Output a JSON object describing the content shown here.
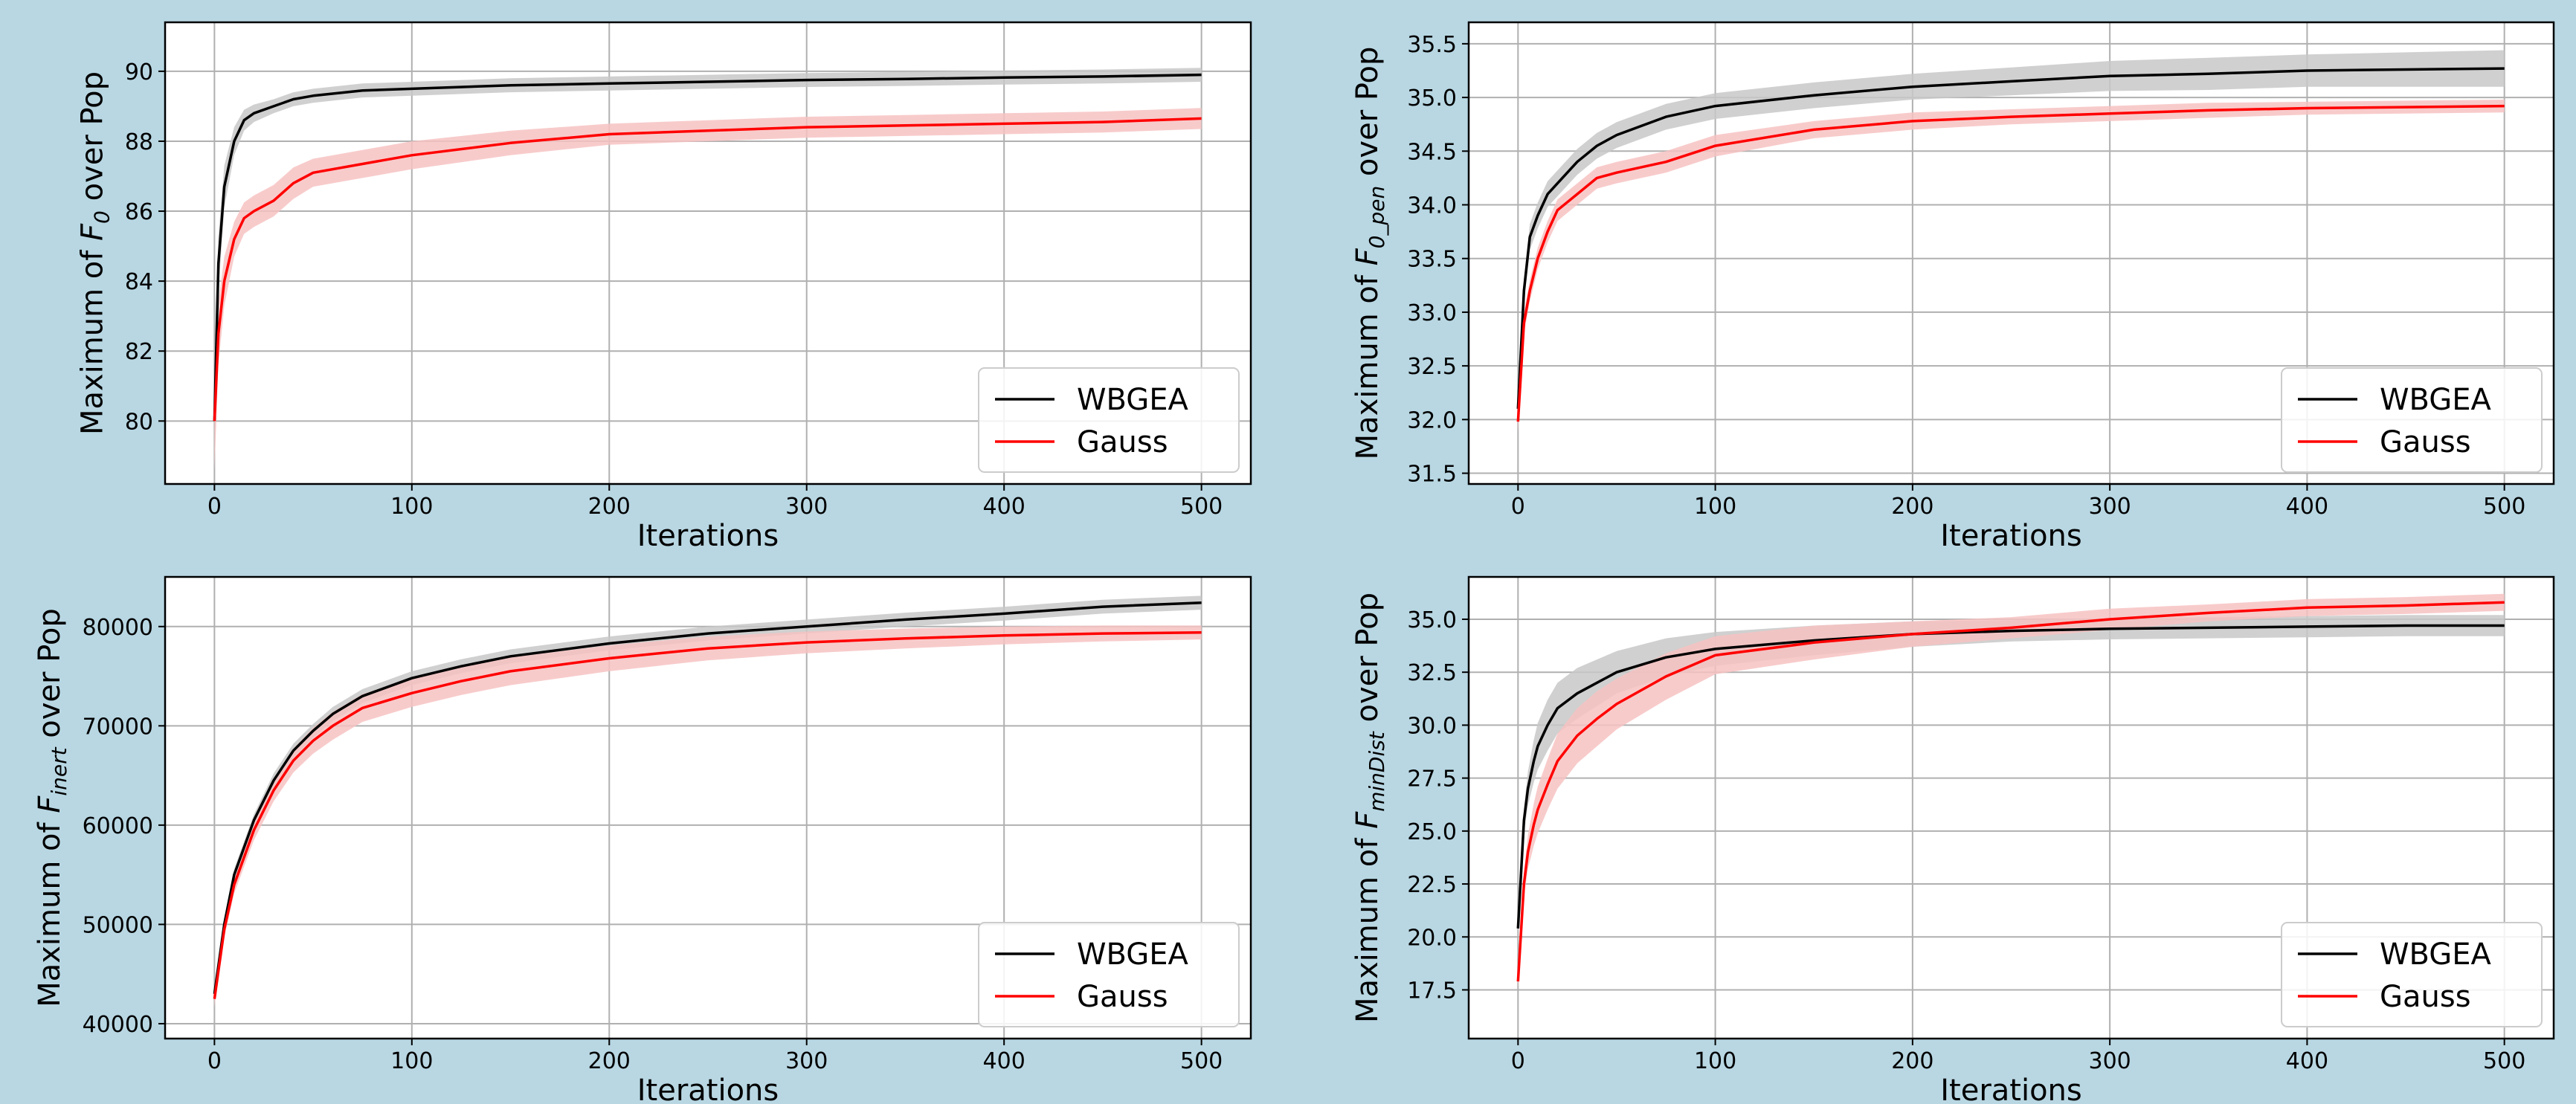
{
  "figure": {
    "background": "#b8d7e3"
  },
  "colors": {
    "WBGEA": "#000000",
    "Gauss": "#ff0000",
    "WBGEA_band": "#c8c8c8",
    "Gauss_band": "#f7c2c2"
  },
  "chart_data": [
    {
      "id": "f0",
      "type": "line",
      "ylabel": {
        "pre": "Maximum of ",
        "sym": "F",
        "sub": "0",
        "post": " over Pop"
      },
      "xlabel": "Iterations",
      "xlim": [
        -25,
        525
      ],
      "ylim": [
        78.2,
        91.4
      ],
      "xticks": [
        0,
        100,
        200,
        300,
        400,
        500
      ],
      "xtick_labels": [
        "0",
        "100",
        "200",
        "300",
        "400",
        "500"
      ],
      "yticks": [
        80,
        82,
        84,
        86,
        88,
        90
      ],
      "ytick_labels": [
        "80",
        "82",
        "84",
        "86",
        "88",
        "90"
      ],
      "grid": true,
      "legend": {
        "position": "lower-right",
        "entries": [
          "WBGEA",
          "Gauss"
        ]
      },
      "series": [
        {
          "name": "WBGEA",
          "x": [
            0,
            2,
            5,
            10,
            15,
            20,
            30,
            40,
            50,
            75,
            100,
            150,
            200,
            250,
            300,
            350,
            400,
            450,
            500
          ],
          "values": [
            80.0,
            84.5,
            86.7,
            88.0,
            88.6,
            88.8,
            89.0,
            89.2,
            89.3,
            89.45,
            89.5,
            89.6,
            89.65,
            89.7,
            89.75,
            89.78,
            89.82,
            89.85,
            89.9
          ],
          "spread": [
            1.4,
            0.8,
            0.6,
            0.4,
            0.3,
            0.25,
            0.2,
            0.2,
            0.2,
            0.2,
            0.2,
            0.2,
            0.2,
            0.2,
            0.2,
            0.2,
            0.2,
            0.2,
            0.2
          ]
        },
        {
          "name": "Gauss",
          "x": [
            0,
            2,
            5,
            10,
            15,
            20,
            30,
            40,
            50,
            75,
            100,
            150,
            200,
            250,
            300,
            350,
            400,
            450,
            500
          ],
          "values": [
            80.0,
            82.5,
            84.0,
            85.2,
            85.8,
            86.0,
            86.3,
            86.8,
            87.1,
            87.35,
            87.6,
            87.95,
            88.2,
            88.3,
            88.4,
            88.45,
            88.5,
            88.55,
            88.65
          ],
          "spread": [
            1.4,
            0.9,
            0.7,
            0.5,
            0.45,
            0.45,
            0.45,
            0.45,
            0.4,
            0.4,
            0.4,
            0.35,
            0.3,
            0.3,
            0.3,
            0.3,
            0.3,
            0.3,
            0.3
          ]
        }
      ]
    },
    {
      "id": "f0pen",
      "type": "line",
      "ylabel": {
        "pre": "Maximum of ",
        "sym": "F",
        "sub": "0_pen",
        "post": " over Pop"
      },
      "xlabel": "Iterations",
      "xlim": [
        -25,
        525
      ],
      "ylim": [
        31.4,
        35.7
      ],
      "xticks": [
        0,
        100,
        200,
        300,
        400,
        500
      ],
      "xtick_labels": [
        "0",
        "100",
        "200",
        "300",
        "400",
        "500"
      ],
      "yticks": [
        31.5,
        32.0,
        32.5,
        33.0,
        33.5,
        34.0,
        34.5,
        35.0,
        35.5
      ],
      "ytick_labels": [
        "31.5",
        "32.0",
        "32.5",
        "33.0",
        "33.5",
        "34.0",
        "34.5",
        "35.0",
        "35.5"
      ],
      "grid": true,
      "legend": {
        "position": "lower-right",
        "entries": [
          "WBGEA",
          "Gauss"
        ]
      },
      "series": [
        {
          "name": "WBGEA",
          "x": [
            0,
            3,
            6,
            10,
            15,
            20,
            30,
            40,
            50,
            75,
            100,
            150,
            200,
            250,
            300,
            350,
            400,
            450,
            500
          ],
          "values": [
            32.1,
            33.2,
            33.7,
            33.9,
            34.1,
            34.2,
            34.4,
            34.55,
            34.65,
            34.82,
            34.92,
            35.02,
            35.1,
            35.15,
            35.2,
            35.22,
            35.25,
            35.26,
            35.27
          ],
          "spread": [
            0.15,
            0.12,
            0.12,
            0.12,
            0.12,
            0.12,
            0.12,
            0.12,
            0.12,
            0.12,
            0.12,
            0.12,
            0.12,
            0.13,
            0.14,
            0.15,
            0.15,
            0.16,
            0.17
          ]
        },
        {
          "name": "Gauss",
          "x": [
            0,
            3,
            6,
            10,
            15,
            20,
            30,
            40,
            50,
            75,
            100,
            150,
            200,
            250,
            300,
            350,
            400,
            450,
            500
          ],
          "values": [
            31.98,
            32.9,
            33.2,
            33.5,
            33.75,
            33.95,
            34.1,
            34.25,
            34.3,
            34.4,
            34.55,
            34.7,
            34.78,
            34.82,
            34.85,
            34.88,
            34.9,
            34.91,
            34.92
          ],
          "spread": [
            0.1,
            0.1,
            0.1,
            0.1,
            0.1,
            0.1,
            0.1,
            0.1,
            0.1,
            0.1,
            0.1,
            0.08,
            0.08,
            0.07,
            0.07,
            0.07,
            0.06,
            0.06,
            0.06
          ]
        }
      ]
    },
    {
      "id": "finert",
      "type": "line",
      "ylabel": {
        "pre": "Maximum of ",
        "sym": "F",
        "sub": "inert",
        "post": " over Pop"
      },
      "xlabel": "Iterations",
      "xlim": [
        -25,
        525
      ],
      "ylim": [
        38500,
        85000
      ],
      "xticks": [
        0,
        100,
        200,
        300,
        400,
        500
      ],
      "xtick_labels": [
        "0",
        "100",
        "200",
        "300",
        "400",
        "500"
      ],
      "yticks": [
        40000,
        50000,
        60000,
        70000,
        80000
      ],
      "ytick_labels": [
        "40000",
        "50000",
        "60000",
        "70000",
        "80000"
      ],
      "grid": true,
      "legend": {
        "position": "lower-right",
        "entries": [
          "WBGEA",
          "Gauss"
        ]
      },
      "series": [
        {
          "name": "WBGEA",
          "x": [
            0,
            5,
            10,
            20,
            30,
            40,
            50,
            60,
            75,
            100,
            125,
            150,
            200,
            250,
            300,
            350,
            400,
            450,
            500
          ],
          "values": [
            43000,
            50000,
            55000,
            60500,
            64500,
            67500,
            69500,
            71200,
            73000,
            74800,
            76000,
            77000,
            78300,
            79300,
            80000,
            80700,
            81300,
            82000,
            82400
          ],
          "spread": [
            800,
            600,
            600,
            600,
            700,
            700,
            700,
            700,
            700,
            700,
            700,
            700,
            700,
            700,
            700,
            700,
            700,
            700,
            700
          ]
        },
        {
          "name": "Gauss",
          "x": [
            0,
            5,
            10,
            20,
            30,
            40,
            50,
            60,
            75,
            100,
            125,
            150,
            200,
            250,
            300,
            350,
            400,
            450,
            500
          ],
          "values": [
            42500,
            49500,
            54000,
            59500,
            63500,
            66500,
            68500,
            70000,
            71800,
            73300,
            74500,
            75500,
            76800,
            77800,
            78400,
            78800,
            79100,
            79300,
            79400
          ],
          "spread": [
            800,
            800,
            900,
            1000,
            1100,
            1200,
            1300,
            1400,
            1400,
            1400,
            1400,
            1400,
            1300,
            1200,
            1100,
            1000,
            900,
            800,
            700
          ]
        }
      ]
    },
    {
      "id": "fmindist",
      "type": "line",
      "ylabel": {
        "pre": "Maximum of ",
        "sym": "F",
        "sub": "minDist",
        "post": " over Pop"
      },
      "xlabel": "Iterations",
      "xlim": [
        -25,
        525
      ],
      "ylim": [
        15.2,
        37.0
      ],
      "xticks": [
        0,
        100,
        200,
        300,
        400,
        500
      ],
      "xtick_labels": [
        "0",
        "100",
        "200",
        "300",
        "400",
        "500"
      ],
      "yticks": [
        17.5,
        20.0,
        22.5,
        25.0,
        27.5,
        30.0,
        32.5,
        35.0
      ],
      "ytick_labels": [
        "17.5",
        "20.0",
        "22.5",
        "25.0",
        "27.5",
        "30.0",
        "32.5",
        "35.0"
      ],
      "grid": true,
      "legend": {
        "position": "lower-right",
        "entries": [
          "WBGEA",
          "Gauss"
        ]
      },
      "series": [
        {
          "name": "WBGEA",
          "x": [
            0,
            3,
            5,
            8,
            10,
            15,
            20,
            30,
            40,
            50,
            75,
            100,
            150,
            200,
            250,
            300,
            350,
            400,
            450,
            500
          ],
          "values": [
            20.4,
            25.5,
            27.0,
            28.3,
            29.0,
            30.0,
            30.8,
            31.5,
            32.0,
            32.5,
            33.2,
            33.6,
            34.0,
            34.3,
            34.45,
            34.55,
            34.6,
            34.65,
            34.7,
            34.7
          ],
          "spread": [
            0.4,
            0.6,
            0.8,
            1.0,
            1.1,
            1.2,
            1.2,
            1.2,
            1.1,
            1.0,
            0.9,
            0.8,
            0.7,
            0.6,
            0.5,
            0.5,
            0.5,
            0.5,
            0.5,
            0.5
          ]
        },
        {
          "name": "Gauss",
          "x": [
            0,
            3,
            5,
            8,
            10,
            15,
            20,
            30,
            40,
            50,
            75,
            100,
            150,
            200,
            250,
            300,
            350,
            400,
            450,
            500
          ],
          "values": [
            17.9,
            22.5,
            24.0,
            25.3,
            26.0,
            27.2,
            28.3,
            29.5,
            30.3,
            31.0,
            32.3,
            33.3,
            33.9,
            34.3,
            34.6,
            35.0,
            35.3,
            35.55,
            35.65,
            35.8
          ],
          "spread": [
            0.4,
            0.6,
            0.8,
            1.0,
            1.1,
            1.2,
            1.3,
            1.3,
            1.3,
            1.2,
            1.1,
            0.9,
            0.8,
            0.6,
            0.5,
            0.5,
            0.4,
            0.4,
            0.4,
            0.4
          ]
        }
      ]
    }
  ]
}
